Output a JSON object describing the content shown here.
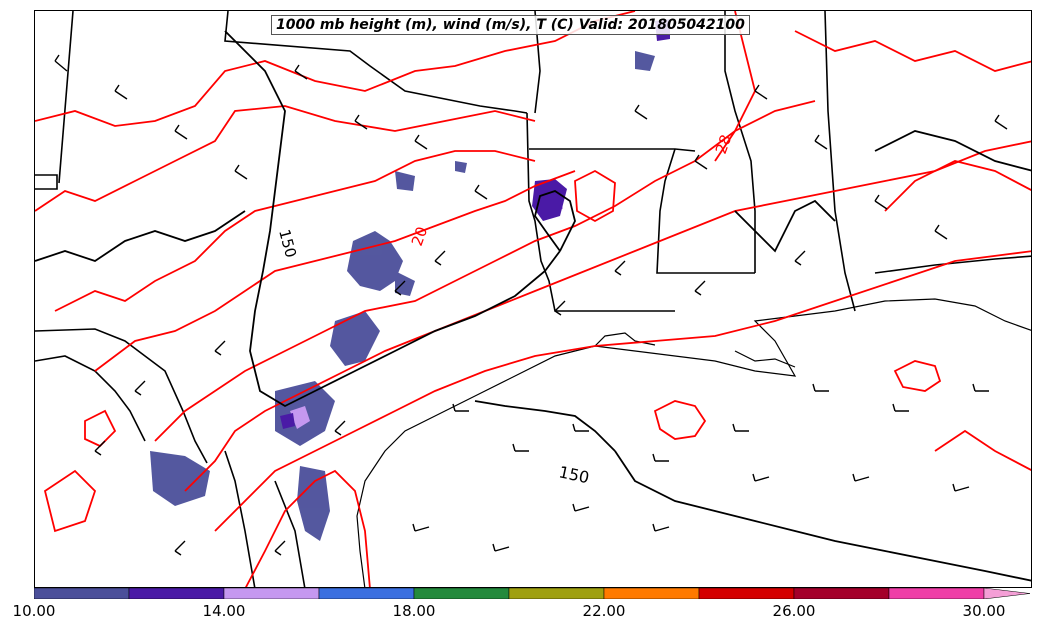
{
  "title": "1000 mb height (m), wind (m/s), T (C) Valid: 201805042100",
  "colors": {
    "temperature_contour": "#ff0000",
    "height_contour": "#000000",
    "boundaries": "#000000"
  },
  "contour_labels": {
    "height_west": "150",
    "height_gulf": "150",
    "temp_central": "20",
    "temp_north": "28"
  },
  "colorbar": {
    "colors": [
      "#4b4f9a",
      "#4a1aa6",
      "#c598f0",
      "#3a6fe0",
      "#238a3c",
      "#9fa010",
      "#ff7a00",
      "#d40000",
      "#a4002a",
      "#ef3ea7",
      "#f49fd6"
    ],
    "ticks": [
      "10.00",
      "14.00",
      "18.00",
      "22.00",
      "26.00",
      "30.00"
    ]
  }
}
